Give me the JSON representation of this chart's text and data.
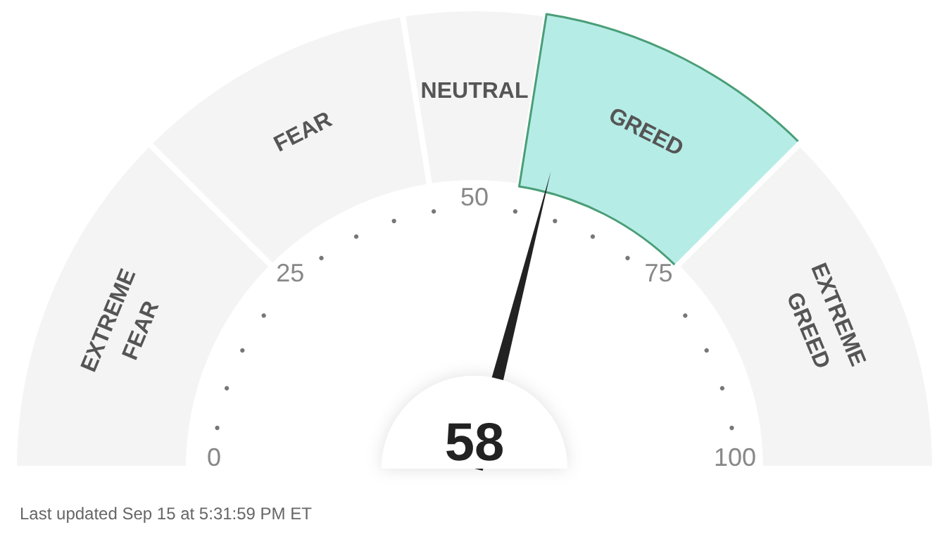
{
  "chart_data": {
    "type": "donut",
    "categories": [
      "EXTREME FEAR",
      "FEAR",
      "NEUTRAL",
      "GREED",
      "EXTREME GREED"
    ],
    "values": [
      25,
      20,
      10,
      20,
      25
    ],
    "colors": [
      "#f4f4f4",
      "#f4f4f4",
      "#f4f4f4",
      "#b6ece6",
      "#f4f4f4"
    ],
    "needle": "GREED",
    "legend": false,
    "annotations": [
      "0",
      "25",
      "50",
      "75",
      "100",
      "58",
      "Last updated Sep 15 at 5:31:59 PM ET"
    ]
  }
}
